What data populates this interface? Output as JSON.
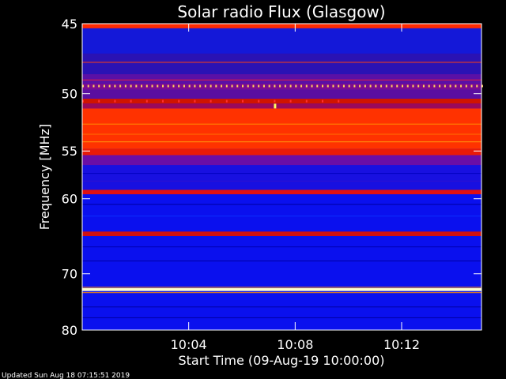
{
  "chart_data": {
    "type": "heatmap",
    "title": "Solar radio Flux (Glasgow)",
    "xlabel": "Start Time (09-Aug-19 10:00:00)",
    "ylabel": "Frequency [MHz]",
    "x_unit": "minutes after 10:00:00",
    "xlim": [
      0,
      15
    ],
    "ylim": [
      45,
      80
    ],
    "y_scale": "reciprocal",
    "x_ticks": [
      {
        "value": 4,
        "label": "10:04"
      },
      {
        "value": 8,
        "label": "10:08"
      },
      {
        "value": 12,
        "label": "10:12"
      }
    ],
    "y_ticks": [
      {
        "value": 45,
        "label": "45"
      },
      {
        "value": 50,
        "label": "50"
      },
      {
        "value": 55,
        "label": "55"
      },
      {
        "value": 60,
        "label": "60"
      },
      {
        "value": 70,
        "label": "70"
      },
      {
        "value": 80,
        "label": "80"
      }
    ],
    "colormap": [
      "#0000ff",
      "#6a00b8",
      "#ff0000",
      "#ff8a00",
      "#ffff40",
      "#ffffff"
    ],
    "bands": [
      {
        "from": 45.0,
        "to": 45.3,
        "color": "#ff2a00"
      },
      {
        "from": 45.3,
        "to": 47.0,
        "color": "#1418d8"
      },
      {
        "from": 47.0,
        "to": 48.5,
        "color": "#2a12b4"
      },
      {
        "from": 48.5,
        "to": 49.2,
        "color": "#5a10a6"
      },
      {
        "from": 49.2,
        "to": 49.7,
        "color": "#7a0c90"
      },
      {
        "from": 49.7,
        "to": 50.4,
        "color": "#5a0ea0"
      },
      {
        "from": 50.4,
        "to": 50.8,
        "color": "#d01400"
      },
      {
        "from": 50.8,
        "to": 51.2,
        "color": "#9a0a5a"
      },
      {
        "from": 51.2,
        "to": 54.8,
        "color": "#ff3200"
      },
      {
        "from": 54.8,
        "to": 55.4,
        "color": "#e81a08"
      },
      {
        "from": 55.4,
        "to": 56.4,
        "color": "#6a0ea6"
      },
      {
        "from": 56.4,
        "to": 59.0,
        "color": "#1810e0"
      },
      {
        "from": 59.0,
        "to": 59.5,
        "color": "#e01010"
      },
      {
        "from": 59.5,
        "to": 64.0,
        "color": "#0a10ee"
      },
      {
        "from": 64.0,
        "to": 64.6,
        "color": "#d01010"
      },
      {
        "from": 64.6,
        "to": 72.3,
        "color": "#0a10ee"
      },
      {
        "from": 72.3,
        "to": 72.8,
        "color": "#ffffcc"
      },
      {
        "from": 72.8,
        "to": 80.0,
        "color": "#0a10ee"
      }
    ],
    "stripes": [
      {
        "y": 47.6,
        "color": "#ff4010"
      },
      {
        "y": 48.9,
        "color": "#e02040"
      },
      {
        "y": 52.5,
        "color": "#ff8a00"
      },
      {
        "y": 53.4,
        "color": "#ff7000"
      },
      {
        "y": 54.1,
        "color": "#ff9a10"
      },
      {
        "y": 57.2,
        "color": "#0000c0"
      },
      {
        "y": 58.0,
        "color": "#3010d0"
      },
      {
        "y": 60.6,
        "color": "#0000a0"
      },
      {
        "y": 62.0,
        "color": "#0a30ff"
      },
      {
        "y": 66.0,
        "color": "#0000b0"
      },
      {
        "y": 68.0,
        "color": "#0000a0"
      },
      {
        "y": 72.1,
        "color": "#ff8a00"
      },
      {
        "y": 73.0,
        "color": "#ff8a00"
      },
      {
        "y": 75.5,
        "color": "#0000a0"
      },
      {
        "y": 77.5,
        "color": "#0000a0"
      }
    ],
    "dotted_lines": [
      {
        "y": 49.4,
        "color": "#ffd060",
        "spacing_min": 0.2,
        "x_from": 0,
        "x_to": 15
      },
      {
        "y": 50.6,
        "color": "#ff3030",
        "spacing_min": 0.6,
        "x_from": 0,
        "x_to": 10
      }
    ],
    "spots": [
      {
        "x": 7.2,
        "y": 51.0,
        "color": "#ffff60"
      }
    ]
  },
  "footer": {
    "updated": "Updated Sun Aug 18 07:15:51 2019"
  }
}
